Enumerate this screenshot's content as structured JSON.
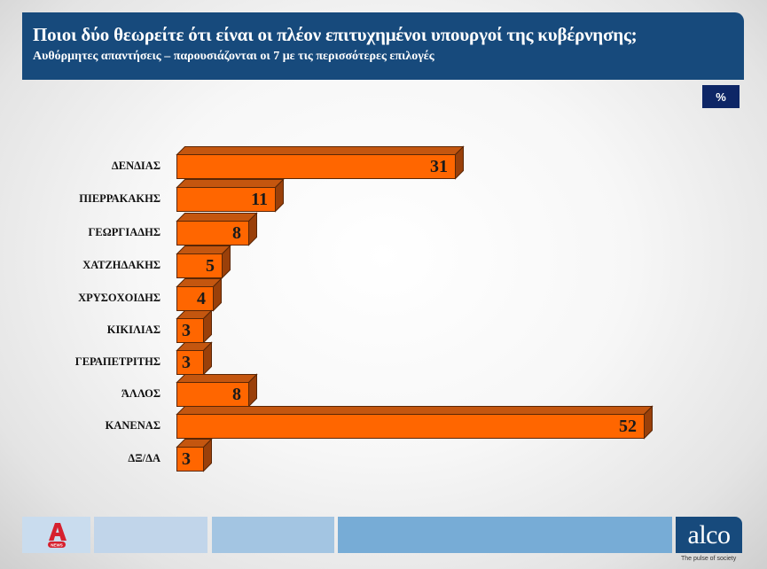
{
  "header": {
    "title": "Ποιοι δύο θεωρείτε ότι είναι οι πλέον επιτυχημένοι υπουργοί της κυβέρνησης;",
    "subtitle": "Αυθόρμητες απαντήσεις – παρουσιάζονται οι 7 με τις περισσότερες επιλογές"
  },
  "unit_badge": "%",
  "colors": {
    "header_bg": "#174a7c",
    "bar_front": "#ff6600",
    "bar_top": "#c4560f",
    "bar_side": "#9a400a",
    "bar_outline": "#5a2605",
    "badge_bg": "#0e2666"
  },
  "bars": [
    {
      "label": "ΔΕΝΔΙΑΣ",
      "value": "31"
    },
    {
      "label": "ΠΙΕΡΡΑΚΑΚΗΣ",
      "value": "11"
    },
    {
      "label": "ΓΕΩΡΓΙΑΔΗΣ",
      "value": "8"
    },
    {
      "label": "ΧΑΤΖΗΔΑΚΗΣ",
      "value": "5"
    },
    {
      "label": "ΧΡΥΣΟΧΟΙΔΗΣ",
      "value": "4"
    },
    {
      "label": "ΚΙΚΙΛΙΑΣ",
      "value": "3"
    },
    {
      "label": "ΓΕΡΑΠΕΤΡΙΤΗΣ",
      "value": "3"
    },
    {
      "label": "ΆΛΛΟΣ",
      "value": "8"
    },
    {
      "label": "ΚΑΝΕΝΑΣ",
      "value": "52"
    },
    {
      "label": "ΔΞ/ΔΑ",
      "value": "3"
    }
  ],
  "footer": {
    "left_logo": "ALPHA NEWS",
    "brand": "alco",
    "tagline": "The pulse of society"
  },
  "chart_data": {
    "type": "bar",
    "orientation": "horizontal",
    "title": "Ποιοι δύο θεωρείτε ότι είναι οι πλέον επιτυχημένοι υπουργοί της κυβέρνησης;",
    "subtitle": "Αυθόρμητες απαντήσεις – παρουσιάζονται οι 7 με τις περισσότερες επιλογές",
    "categories": [
      "ΔΕΝΔΙΑΣ",
      "ΠΙΕΡΡΑΚΑΚΗΣ",
      "ΓΕΩΡΓΙΑΔΗΣ",
      "ΧΑΤΖΗΔΑΚΗΣ",
      "ΧΡΥΣΟΧΟΙΔΗΣ",
      "ΚΙΚΙΛΙΑΣ",
      "ΓΕΡΑΠΕΤΡΙΤΗΣ",
      "ΆΛΛΟΣ",
      "ΚΑΝΕΝΑΣ",
      "ΔΞ/ΔΑ"
    ],
    "values": [
      31,
      11,
      8,
      5,
      4,
      3,
      3,
      8,
      52,
      3
    ],
    "unit": "%",
    "xlabel": "",
    "ylabel": "",
    "xlim": [
      0,
      52
    ],
    "grid": false,
    "legend": null,
    "style": "3d-bar",
    "data_labels": true
  }
}
